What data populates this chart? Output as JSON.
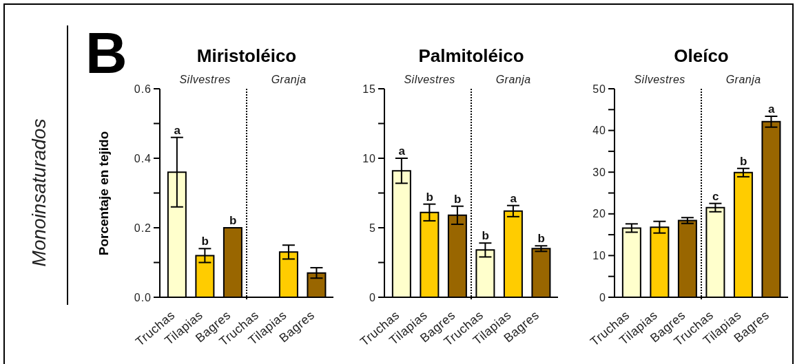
{
  "chart_data": [
    {
      "type": "bar",
      "title": "Miristoléico",
      "ylabel": "Porcentaje en tejido",
      "annotations": [
        "Silvestres",
        "Granja",
        "B",
        "Monoinsaturados"
      ],
      "categories": [
        "Truchas",
        "Tilapias",
        "Bagres",
        "Truchas",
        "Tilapias",
        "Bagres"
      ],
      "values": [
        0.36,
        0.12,
        0.2,
        null,
        0.13,
        0.07
      ],
      "colors": [
        "#ffffcc",
        "#ffcc00",
        "#996600",
        "#ffffcc",
        "#ffcc00",
        "#996600"
      ],
      "errors": [
        0.1,
        0.02,
        null,
        null,
        0.02,
        0.015
      ],
      "value_labels": [
        "a",
        "b",
        "b",
        null,
        null,
        null
      ],
      "ylim": [
        0,
        0.6
      ],
      "yticks": [
        {
          "value": 0,
          "label": "0.0"
        },
        {
          "value": 0.1,
          "label": null
        },
        0.2,
        {
          "value": 0.3,
          "label": null
        },
        0.4,
        {
          "value": 0.5,
          "label": null
        },
        0.6
      ]
    },
    {
      "type": "bar",
      "title": "Palmitoléico",
      "annotations": [
        "Silvestres",
        "Granja"
      ],
      "categories": [
        "Truchas",
        "Tilapias",
        "Bagres",
        "Truchas",
        "Tilapias",
        "Bagres"
      ],
      "values": [
        9.1,
        6.1,
        5.9,
        3.4,
        6.2,
        3.5
      ],
      "colors": [
        "#ffffcc",
        "#ffcc00",
        "#996600",
        "#ffffcc",
        "#ffcc00",
        "#996600"
      ],
      "errors": [
        0.9,
        0.6,
        0.65,
        0.5,
        0.4,
        0.2
      ],
      "value_labels": [
        "a",
        "b",
        "b",
        "b",
        "a",
        "b"
      ],
      "ylim": [
        0,
        15
      ],
      "yticks": [
        0,
        {
          "value": 2.5,
          "label": null
        },
        5,
        {
          "value": 7.5,
          "label": null
        },
        10,
        {
          "value": 12.5,
          "label": null
        },
        15
      ]
    },
    {
      "type": "bar",
      "title": "Oleíco",
      "annotations": [
        "Silvestres",
        "Granja"
      ],
      "categories": [
        "Truchas",
        "Tilapias",
        "Bagres",
        "Truchas",
        "Tilapias",
        "Bagres"
      ],
      "values": [
        16.6,
        16.8,
        18.4,
        21.5,
        29.9,
        42.1
      ],
      "colors": [
        "#ffffcc",
        "#ffcc00",
        "#996600",
        "#ffffcc",
        "#ffcc00",
        "#996600"
      ],
      "errors": [
        1,
        1.4,
        0.7,
        1,
        1,
        1.3
      ],
      "value_labels": [
        null,
        null,
        null,
        "c",
        "b",
        "a"
      ],
      "ylim": [
        0,
        50
      ],
      "yticks": [
        0,
        {
          "value": 5,
          "label": null
        },
        10,
        {
          "value": 15,
          "label": null
        },
        20,
        {
          "value": 25,
          "label": null
        },
        30,
        {
          "value": 35,
          "label": null
        },
        40,
        {
          "value": 45,
          "label": null
        },
        50
      ]
    }
  ]
}
